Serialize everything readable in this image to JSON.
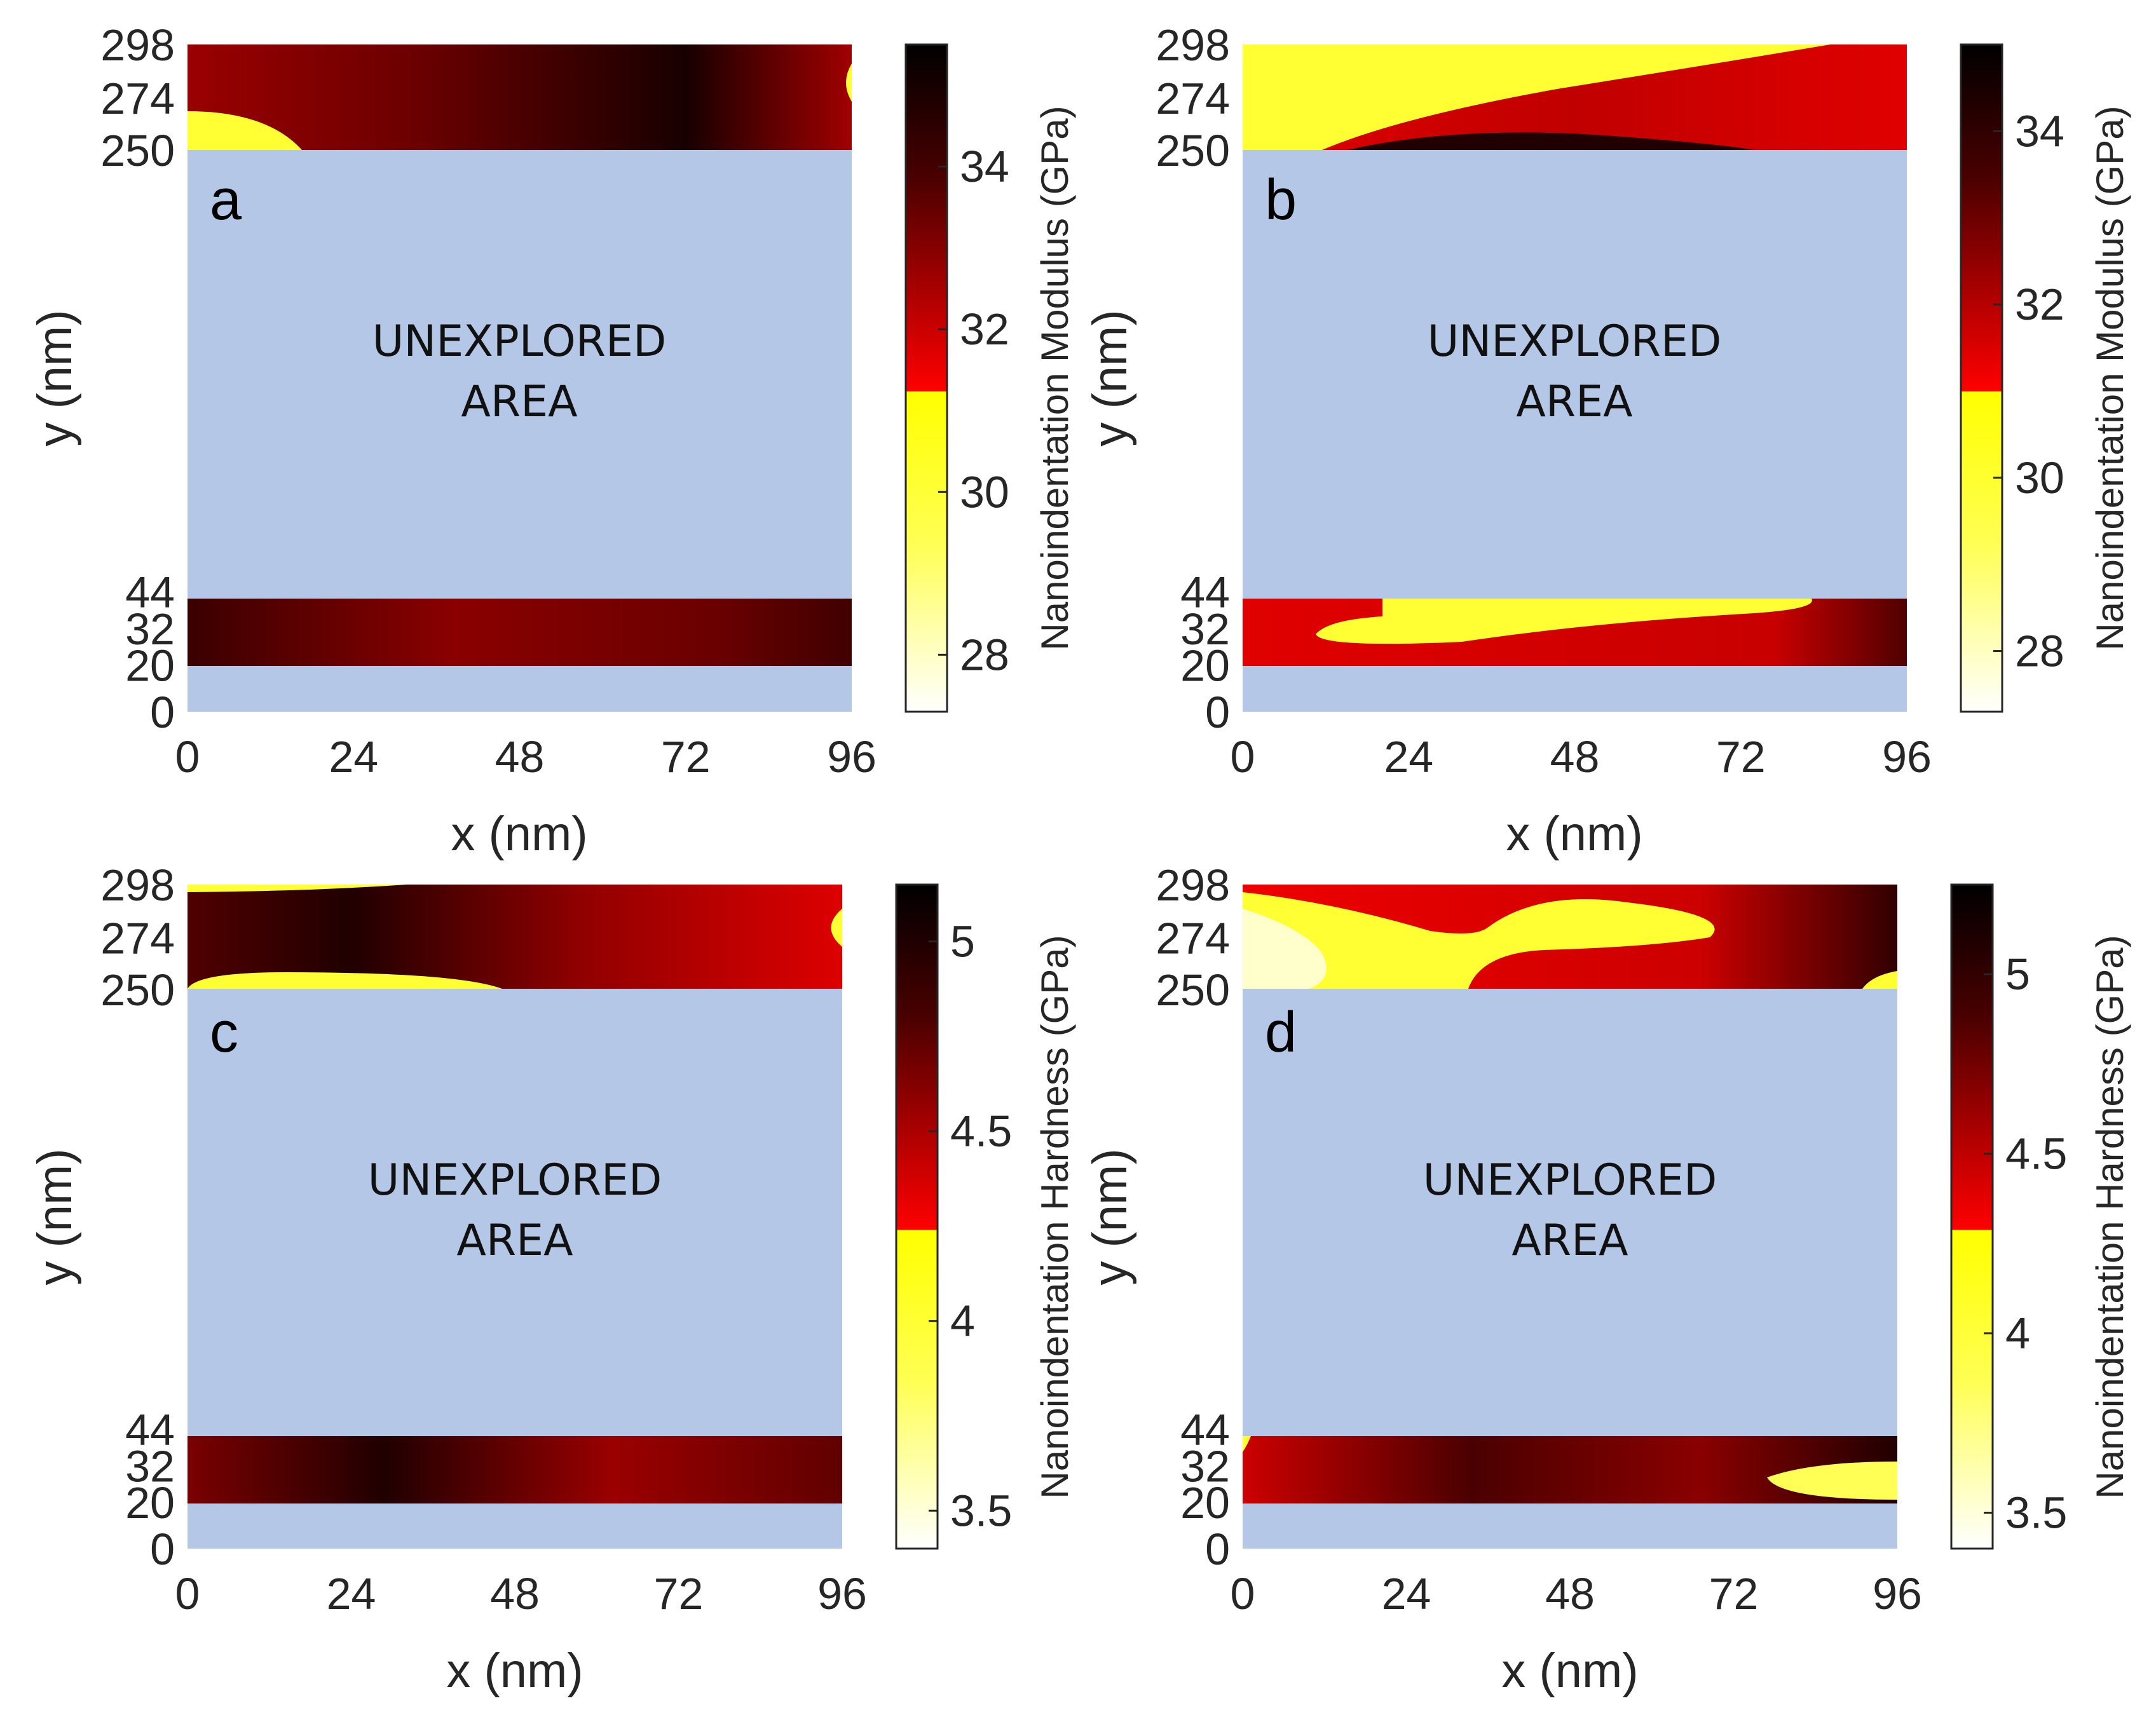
{
  "colors": {
    "unexplored": "#b4c7e7",
    "yellow": "#ffff00",
    "red": "#ee0000",
    "black": "#000000",
    "white": "#ffffff"
  },
  "chart_data": [
    {
      "type": "heatmap",
      "panel": "a",
      "xlabel": "x  (nm)",
      "ylabel": "y  (nm)",
      "xlim": [
        0,
        96
      ],
      "ylim": [
        0,
        298
      ],
      "xticks": [
        "0",
        "24",
        "48",
        "72",
        "96"
      ],
      "yticks": [
        "0",
        "20",
        "32",
        "44",
        "250",
        "274",
        "298"
      ],
      "measured_bands": [
        [
          20,
          44
        ],
        [
          250,
          298
        ]
      ],
      "unexplored_label": [
        "UNEXPLORED",
        "AREA"
      ],
      "colorbar": {
        "label": "Nanoindentation Modulus (GPa)",
        "range": [
          27.3,
          35.5
        ],
        "threshold": 31.2,
        "ticks": [
          "28",
          "30",
          "32",
          "34"
        ]
      }
    },
    {
      "type": "heatmap",
      "panel": "b",
      "xlabel": "x  (nm)",
      "ylabel": "y  (nm)",
      "xlim": [
        0,
        96
      ],
      "ylim": [
        0,
        298
      ],
      "xticks": [
        "0",
        "24",
        "48",
        "72",
        "96"
      ],
      "yticks": [
        "0",
        "20",
        "32",
        "44",
        "250",
        "274",
        "298"
      ],
      "measured_bands": [
        [
          20,
          44
        ],
        [
          250,
          298
        ]
      ],
      "unexplored_label": [
        "UNEXPLORED",
        "AREA"
      ],
      "colorbar": {
        "label": "Nanoindentation Modulus (GPa)",
        "range": [
          27.3,
          35.0
        ],
        "threshold": 31.0,
        "ticks": [
          "28",
          "30",
          "32",
          "34"
        ]
      }
    },
    {
      "type": "heatmap",
      "panel": "c",
      "xlabel": "x  (nm)",
      "ylabel": "y  (nm)",
      "xlim": [
        0,
        96
      ],
      "ylim": [
        0,
        298
      ],
      "xticks": [
        "0",
        "24",
        "48",
        "72",
        "96"
      ],
      "yticks": [
        "0",
        "20",
        "32",
        "44",
        "250",
        "274",
        "298"
      ],
      "measured_bands": [
        [
          20,
          44
        ],
        [
          250,
          298
        ]
      ],
      "unexplored_label": [
        "UNEXPLORED",
        "AREA"
      ],
      "colorbar": {
        "label": "Nanoindentation Hardness (GPa)",
        "range": [
          3.4,
          5.15
        ],
        "threshold": 4.3,
        "ticks": [
          "3.5",
          "4",
          "4.5",
          "5"
        ]
      }
    },
    {
      "type": "heatmap",
      "panel": "d",
      "xlabel": "x  (nm)",
      "ylabel": "y  (nm)",
      "xlim": [
        0,
        96
      ],
      "ylim": [
        0,
        298
      ],
      "xticks": [
        "0",
        "24",
        "48",
        "72",
        "96"
      ],
      "yticks": [
        "0",
        "20",
        "32",
        "44",
        "250",
        "274",
        "298"
      ],
      "measured_bands": [
        [
          20,
          44
        ],
        [
          250,
          298
        ]
      ],
      "unexplored_label": [
        "UNEXPLORED",
        "AREA"
      ],
      "colorbar": {
        "label": "Nanoindentation Hardness (GPa)",
        "range": [
          3.4,
          5.25
        ],
        "threshold": 4.28,
        "ticks": [
          "3.5",
          "4",
          "4.5",
          "5"
        ]
      }
    }
  ]
}
